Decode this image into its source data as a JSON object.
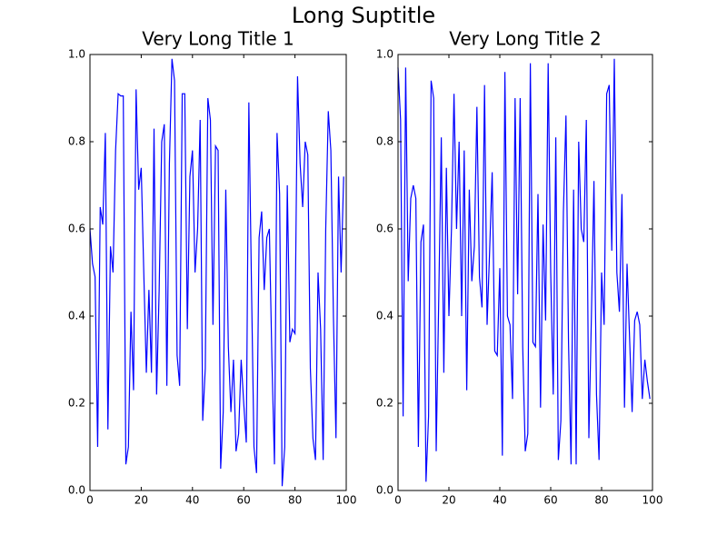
{
  "suptitle": "Long Suptitle",
  "chart_data": [
    {
      "type": "line",
      "title": "Very Long Title 1",
      "xlim": [
        0,
        100
      ],
      "ylim": [
        0,
        1
      ],
      "xticks": [
        0,
        20,
        40,
        60,
        80,
        100
      ],
      "yticks": [
        {
          "value": 0,
          "label": "0.0"
        },
        {
          "value": 0.2,
          "label": "0.2"
        },
        {
          "value": 0.4,
          "label": "0.4"
        },
        {
          "value": 0.6,
          "label": "0.6"
        },
        {
          "value": 0.8,
          "label": "0.8"
        },
        {
          "value": 1,
          "label": "1.0"
        }
      ],
      "x": [
        0,
        1,
        2,
        3,
        4,
        5,
        6,
        7,
        8,
        9,
        10,
        11,
        12,
        13,
        14,
        15,
        16,
        17,
        18,
        19,
        20,
        21,
        22,
        23,
        24,
        25,
        26,
        27,
        28,
        29,
        30,
        31,
        32,
        33,
        34,
        35,
        36,
        37,
        38,
        39,
        40,
        41,
        42,
        43,
        44,
        45,
        46,
        47,
        48,
        49,
        50,
        51,
        52,
        53,
        54,
        55,
        56,
        57,
        58,
        59,
        60,
        61,
        62,
        63,
        64,
        65,
        66,
        67,
        68,
        69,
        70,
        71,
        72,
        73,
        74,
        75,
        76,
        77,
        78,
        79,
        80,
        81,
        82,
        83,
        84,
        85,
        86,
        87,
        88,
        89,
        90,
        91,
        92,
        93,
        94,
        95,
        96,
        97,
        98,
        99
      ],
      "series": [
        {
          "color": "#0000ff",
          "values": [
            0.6,
            0.52,
            0.49,
            0.1,
            0.65,
            0.61,
            0.82,
            0.14,
            0.56,
            0.5,
            0.78,
            0.91,
            0.905,
            0.905,
            0.06,
            0.1,
            0.41,
            0.23,
            0.92,
            0.69,
            0.74,
            0.5,
            0.27,
            0.46,
            0.27,
            0.83,
            0.22,
            0.46,
            0.8,
            0.84,
            0.24,
            0.75,
            0.99,
            0.94,
            0.31,
            0.24,
            0.91,
            0.91,
            0.37,
            0.72,
            0.78,
            0.5,
            0.6,
            0.85,
            0.16,
            0.28,
            0.9,
            0.85,
            0.38,
            0.79,
            0.78,
            0.05,
            0.18,
            0.69,
            0.33,
            0.18,
            0.3,
            0.09,
            0.13,
            0.3,
            0.2,
            0.11,
            0.89,
            0.48,
            0.1,
            0.04,
            0.58,
            0.64,
            0.46,
            0.58,
            0.6,
            0.3,
            0.06,
            0.82,
            0.68,
            0.01,
            0.1,
            0.7,
            0.34,
            0.37,
            0.36,
            0.95,
            0.75,
            0.65,
            0.8,
            0.77,
            0.28,
            0.12,
            0.07,
            0.5,
            0.37,
            0.07,
            0.6,
            0.87,
            0.78,
            0.4,
            0.12,
            0.72,
            0.5,
            0.72
          ]
        }
      ]
    },
    {
      "type": "line",
      "title": "Very Long Title 2",
      "xlim": [
        0,
        100
      ],
      "ylim": [
        0,
        1
      ],
      "xticks": [
        0,
        20,
        40,
        60,
        80,
        100
      ],
      "yticks": [
        {
          "value": 0,
          "label": "0.0"
        },
        {
          "value": 0.2,
          "label": "0.2"
        },
        {
          "value": 0.4,
          "label": "0.4"
        },
        {
          "value": 0.6,
          "label": "0.6"
        },
        {
          "value": 0.8,
          "label": "0.8"
        },
        {
          "value": 1,
          "label": "1.0"
        }
      ],
      "x": [
        0,
        1,
        2,
        3,
        4,
        5,
        6,
        7,
        8,
        9,
        10,
        11,
        12,
        13,
        14,
        15,
        16,
        17,
        18,
        19,
        20,
        21,
        22,
        23,
        24,
        25,
        26,
        27,
        28,
        29,
        30,
        31,
        32,
        33,
        34,
        35,
        36,
        37,
        38,
        39,
        40,
        41,
        42,
        43,
        44,
        45,
        46,
        47,
        48,
        49,
        50,
        51,
        52,
        53,
        54,
        55,
        56,
        57,
        58,
        59,
        60,
        61,
        62,
        63,
        64,
        65,
        66,
        67,
        68,
        69,
        70,
        71,
        72,
        73,
        74,
        75,
        76,
        77,
        78,
        79,
        80,
        81,
        82,
        83,
        84,
        85,
        86,
        87,
        88,
        89,
        90,
        91,
        92,
        93,
        94,
        95,
        96,
        97,
        98,
        99
      ],
      "series": [
        {
          "color": "#0000ff",
          "values": [
            0.97,
            0.85,
            0.17,
            0.97,
            0.48,
            0.67,
            0.7,
            0.67,
            0.1,
            0.57,
            0.61,
            0.02,
            0.17,
            0.94,
            0.9,
            0.09,
            0.44,
            0.81,
            0.27,
            0.74,
            0.4,
            0.6,
            0.91,
            0.6,
            0.8,
            0.4,
            0.78,
            0.23,
            0.69,
            0.48,
            0.56,
            0.88,
            0.49,
            0.42,
            0.93,
            0.38,
            0.55,
            0.73,
            0.32,
            0.31,
            0.51,
            0.08,
            0.96,
            0.4,
            0.38,
            0.21,
            0.9,
            0.45,
            0.9,
            0.33,
            0.09,
            0.13,
            0.98,
            0.34,
            0.33,
            0.68,
            0.19,
            0.61,
            0.39,
            0.98,
            0.5,
            0.22,
            0.81,
            0.07,
            0.16,
            0.64,
            0.86,
            0.34,
            0.06,
            0.69,
            0.06,
            0.8,
            0.6,
            0.57,
            0.85,
            0.12,
            0.4,
            0.71,
            0.22,
            0.07,
            0.5,
            0.38,
            0.91,
            0.93,
            0.55,
            0.99,
            0.5,
            0.41,
            0.68,
            0.19,
            0.52,
            0.35,
            0.18,
            0.39,
            0.41,
            0.38,
            0.21,
            0.3,
            0.25,
            0.21
          ]
        }
      ]
    }
  ]
}
